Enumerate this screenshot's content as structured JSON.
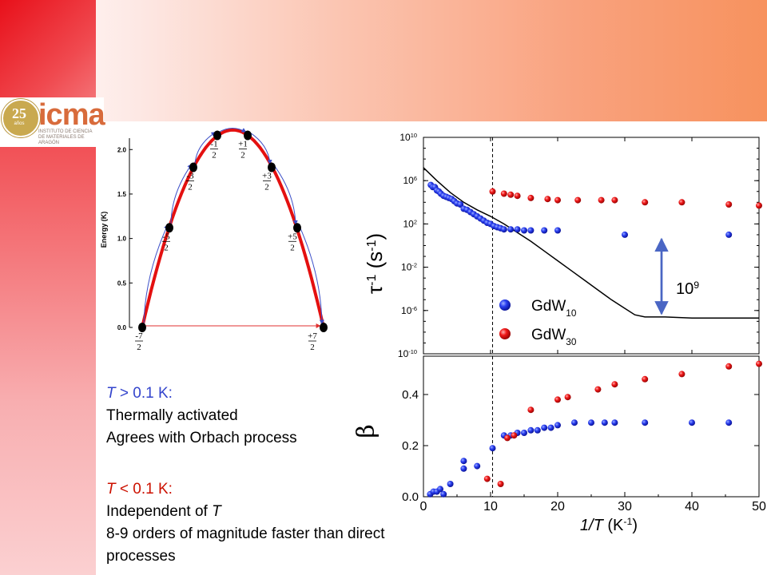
{
  "logo": {
    "anniversary": "25",
    "anniversary_sub": "años",
    "name": "icma",
    "caption_line1": "INSTITUTO DE CIENCIA",
    "caption_line2": "DE MATERIALES DE ARAGÓN"
  },
  "colors": {
    "blue_series": "#1a2fe0",
    "red_series": "#e81010",
    "parabola": "#e41010",
    "arrow_blue": "#3c4fc8",
    "arrow_red": "#e03030",
    "header_orange": "#f7925e",
    "side_red": "#ee1c24"
  },
  "notes": {
    "high_T_cond_var": "T",
    "high_T_cond_rest": " > 0.1 K:",
    "high_T_line1": "Thermally activated",
    "high_T_line2": "Agrees with Orbach process",
    "low_T_cond_var": "T",
    "low_T_cond_rest": " < 0.1 K:",
    "low_T_line1_a": "Independent of ",
    "low_T_line1_var": "T",
    "low_T_line2": "8-9 orders of magnitude faster than direct",
    "low_T_line3": "processes"
  },
  "chart_data": [
    {
      "type": "line",
      "ylabel": "Energy (K)",
      "ylim": [
        0,
        2.2
      ],
      "yticks": [
        "0.0",
        "0.5",
        "1.0",
        "1.5",
        "2.0"
      ],
      "levels": [
        {
          "m_num": "-7",
          "m_den": "2",
          "energy": 0.0
        },
        {
          "m_num": "-5",
          "m_den": "2",
          "energy": 1.12
        },
        {
          "m_num": "-3",
          "m_den": "2",
          "energy": 1.8
        },
        {
          "m_num": "-1",
          "m_den": "2",
          "energy": 2.16
        },
        {
          "m_num": "+1",
          "m_den": "2",
          "energy": 2.16
        },
        {
          "m_num": "+3",
          "m_den": "2",
          "energy": 1.8
        },
        {
          "m_num": "+5",
          "m_den": "2",
          "energy": 1.12
        },
        {
          "m_num": "+7",
          "m_den": "2",
          "energy": 0.0
        }
      ],
      "grid": false
    },
    {
      "type": "scatter",
      "xlabel_var": "1/T",
      "xlabel_unit": "(K",
      "xlabel_exp": "-1",
      "xlabel_close": ")",
      "ylabel_sym": "τ",
      "ylabel_exp1": "-1",
      "ylabel_unit": "(s",
      "ylabel_exp2": "-1",
      "ylabel_close": ")",
      "yscale": "log",
      "xlim": [
        0,
        50
      ],
      "ylim_exp": [
        -10,
        10
      ],
      "ytick_exps": [
        "10",
        "6",
        "2",
        "-2",
        "-6",
        "-10"
      ],
      "annotation_base": "10",
      "annotation_exp": "9",
      "vline_x": 10.3,
      "legend_position": "bottom-center",
      "series": [
        {
          "name_base": "GdW",
          "name_sub": "10",
          "color": "#1a2fe0",
          "points": [
            [
              1.1,
              5.6
            ],
            [
              1.4,
              5.4
            ],
            [
              1.7,
              5.4
            ],
            [
              2.0,
              5.1
            ],
            [
              2.3,
              5.0
            ],
            [
              2.6,
              4.8
            ],
            [
              3.0,
              4.6
            ],
            [
              3.4,
              4.5
            ],
            [
              3.8,
              4.4
            ],
            [
              4.2,
              4.3
            ],
            [
              4.6,
              4.1
            ],
            [
              5.0,
              3.9
            ],
            [
              5.5,
              3.8
            ],
            [
              6.0,
              3.4
            ],
            [
              6.5,
              3.3
            ],
            [
              7.0,
              3.1
            ],
            [
              7.5,
              2.9
            ],
            [
              8.0,
              2.7
            ],
            [
              8.5,
              2.5
            ],
            [
              9.0,
              2.3
            ],
            [
              9.5,
              2.1
            ],
            [
              10.0,
              2.0
            ],
            [
              10.5,
              1.8
            ],
            [
              11.0,
              1.7
            ],
            [
              11.5,
              1.6
            ],
            [
              12.0,
              1.5
            ],
            [
              13.0,
              1.5
            ],
            [
              14.0,
              1.5
            ],
            [
              15.0,
              1.4
            ],
            [
              16.0,
              1.4
            ],
            [
              18.0,
              1.4
            ],
            [
              20.0,
              1.4
            ],
            [
              30.0,
              1.0
            ],
            [
              45.5,
              1.0
            ]
          ]
        },
        {
          "name_base": "GdW",
          "name_sub": "30",
          "color": "#e81010",
          "points": [
            [
              10.3,
              5.0
            ],
            [
              12.0,
              4.8
            ],
            [
              13.0,
              4.7
            ],
            [
              14.0,
              4.6
            ],
            [
              16.0,
              4.4
            ],
            [
              18.5,
              4.3
            ],
            [
              20.0,
              4.2
            ],
            [
              23.0,
              4.2
            ],
            [
              26.5,
              4.2
            ],
            [
              28.5,
              4.2
            ],
            [
              33.0,
              4.0
            ],
            [
              38.5,
              4.0
            ],
            [
              45.5,
              3.8
            ],
            [
              50.0,
              3.7
            ]
          ]
        }
      ],
      "fit_curve": [
        [
          0,
          7.2
        ],
        [
          2,
          6.0
        ],
        [
          4,
          4.9
        ],
        [
          6,
          4.0
        ],
        [
          8,
          3.3
        ],
        [
          10,
          2.7
        ],
        [
          12,
          2.0
        ],
        [
          14,
          1.2
        ],
        [
          16,
          0.4
        ],
        [
          18,
          -0.5
        ],
        [
          20,
          -1.4
        ],
        [
          22,
          -2.3
        ],
        [
          24,
          -3.2
        ],
        [
          26,
          -4.1
        ],
        [
          28,
          -5.0
        ],
        [
          30,
          -5.8
        ],
        [
          31.5,
          -6.4
        ],
        [
          33,
          -6.6
        ],
        [
          36,
          -6.6
        ],
        [
          40,
          -6.7
        ],
        [
          45,
          -6.7
        ],
        [
          50,
          -6.7
        ]
      ],
      "grid": false
    },
    {
      "type": "scatter",
      "ylabel_sym": "β",
      "xlim": [
        0,
        50
      ],
      "ylim": [
        0,
        0.55
      ],
      "yticks": [
        "0.0",
        "0.2",
        "0.4"
      ],
      "xticks": [
        "0",
        "10",
        "20",
        "30",
        "40",
        "50"
      ],
      "vline_x": 10.3,
      "series": [
        {
          "name": "GdW10",
          "color": "#1a2fe0",
          "points": [
            [
              1.0,
              0.01
            ],
            [
              1.5,
              0.02
            ],
            [
              2.0,
              0.02
            ],
            [
              2.5,
              0.03
            ],
            [
              3.0,
              0.01
            ],
            [
              4.0,
              0.05
            ],
            [
              6.0,
              0.14
            ],
            [
              6.0,
              0.11
            ],
            [
              8.0,
              0.12
            ],
            [
              10.3,
              0.19
            ],
            [
              12.0,
              0.24
            ],
            [
              13.0,
              0.24
            ],
            [
              14.0,
              0.25
            ],
            [
              15.0,
              0.25
            ],
            [
              16.0,
              0.26
            ],
            [
              17.0,
              0.26
            ],
            [
              18.0,
              0.27
            ],
            [
              19.0,
              0.27
            ],
            [
              20.0,
              0.28
            ],
            [
              22.5,
              0.29
            ],
            [
              25.0,
              0.29
            ],
            [
              27.0,
              0.29
            ],
            [
              28.5,
              0.29
            ],
            [
              33.0,
              0.29
            ],
            [
              40.0,
              0.29
            ],
            [
              45.5,
              0.29
            ]
          ]
        },
        {
          "name": "GdW30",
          "color": "#e81010",
          "points": [
            [
              9.5,
              0.07
            ],
            [
              11.5,
              0.05
            ],
            [
              12.5,
              0.23
            ],
            [
              13.5,
              0.24
            ],
            [
              16.0,
              0.34
            ],
            [
              20.0,
              0.38
            ],
            [
              21.5,
              0.39
            ],
            [
              26.0,
              0.42
            ],
            [
              28.5,
              0.44
            ],
            [
              33.0,
              0.46
            ],
            [
              38.5,
              0.48
            ],
            [
              45.5,
              0.51
            ],
            [
              50.0,
              0.52
            ]
          ]
        }
      ],
      "grid": false
    }
  ]
}
